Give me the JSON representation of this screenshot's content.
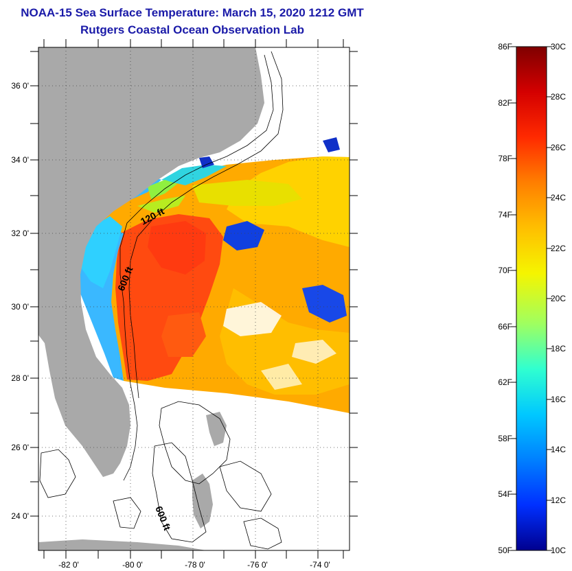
{
  "header": {
    "title": "NOAA-15 Sea Surface Temperature:  March 15, 2020 1212 GMT",
    "subtitle": "Rutgers Coastal Ocean Observation Lab"
  },
  "map": {
    "lat_labels": [
      "36 0'",
      "34 0'",
      "32 0'",
      "30 0'",
      "28 0'",
      "26 0'",
      "24 0'"
    ],
    "lon_labels": [
      "-82 0'",
      "-80 0'",
      "-78 0'",
      "-76 0'",
      "-74 0'"
    ],
    "contour_labels": {
      "c120": "120 ft",
      "c600a": "600 ft",
      "c600b": "600 ft"
    },
    "colors": {
      "land": "#a9a9a9",
      "coastline": "#000000",
      "no_data": "#ffffff"
    }
  },
  "colorbar": {
    "fahrenheit_labels": [
      "86F",
      "82F",
      "78F",
      "74F",
      "70F",
      "66F",
      "62F",
      "58F",
      "54F",
      "50F"
    ],
    "celsius_labels": [
      "30C",
      "28C",
      "26C",
      "24C",
      "22C",
      "20C",
      "18C",
      "16C",
      "14C",
      "12C",
      "10C"
    ],
    "gradient_colors": [
      "#7f0000",
      "#d40000",
      "#ff2a00",
      "#ff7f00",
      "#ffbf00",
      "#f5f500",
      "#9fff60",
      "#30ffd0",
      "#00c8ff",
      "#0080ff",
      "#0030ff",
      "#00008f"
    ]
  }
}
